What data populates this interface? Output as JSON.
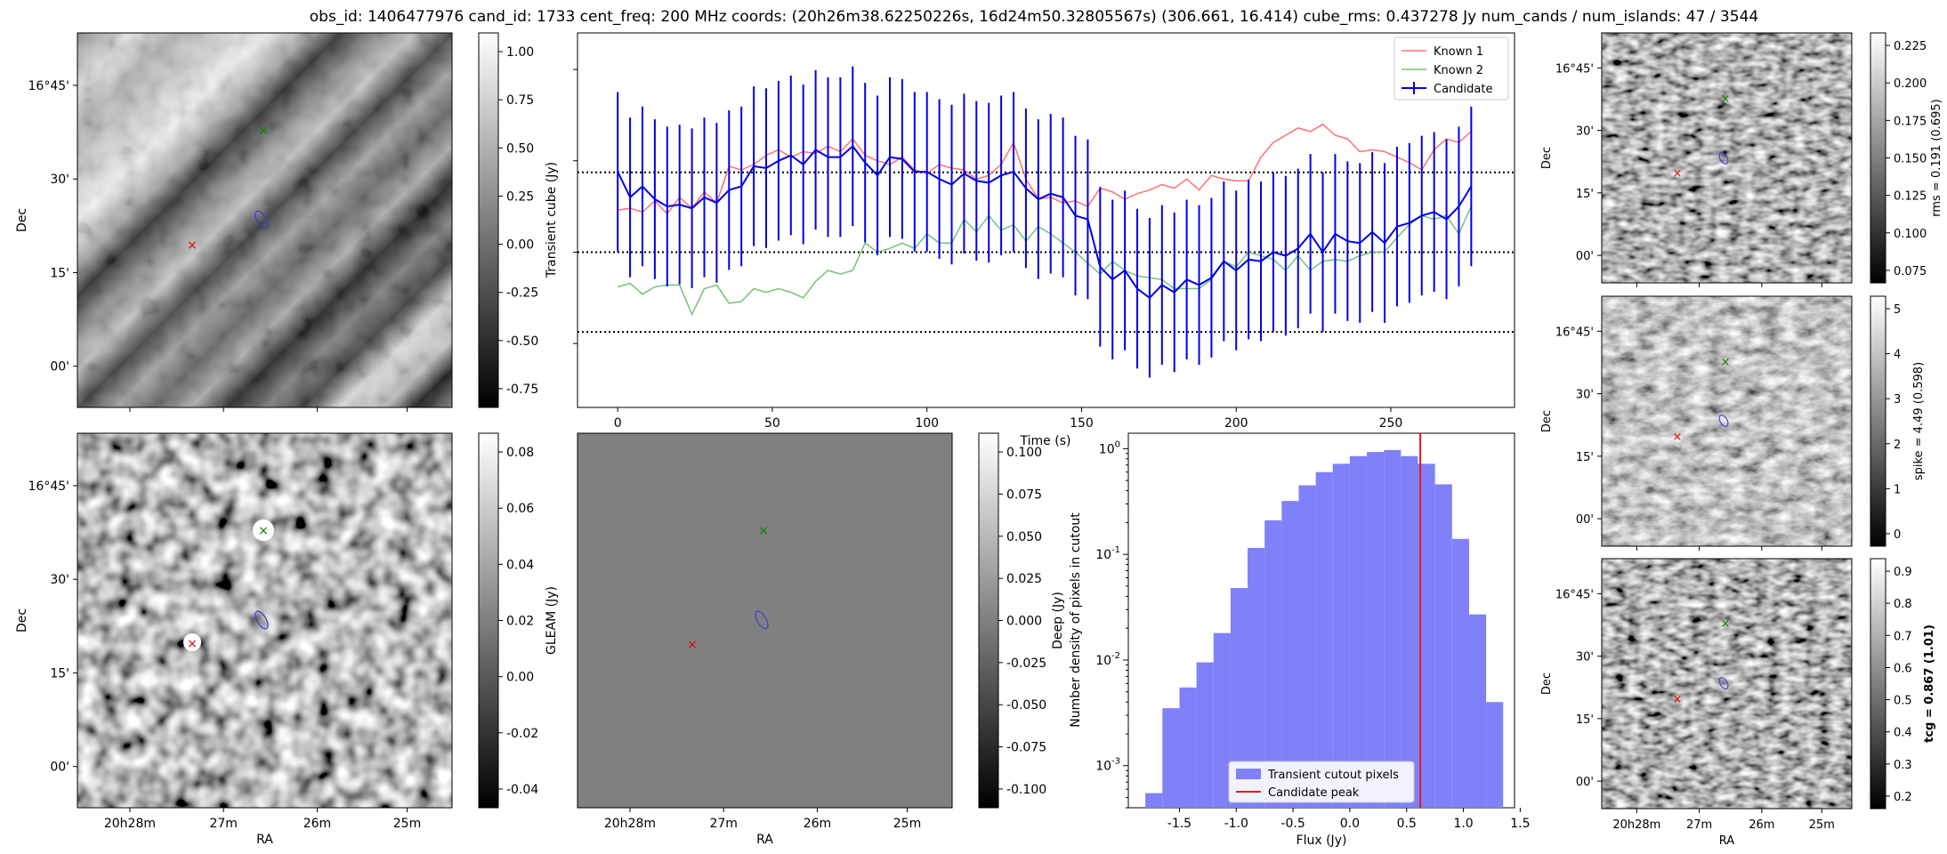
{
  "title": "obs_id: 1406477976 cand_id: 1733 cent_freq: 200 MHz coords: (20h26m38.62250226s, 16d24m50.32805567s) (306.661, 16.414) cube_rms: 0.437278 Jy num_cands / num_islands: 47 / 3544",
  "colors": {
    "known1": "#ff7070",
    "known2": "#78c078",
    "candidate": "#0000e6",
    "peak_line": "#e61a1a",
    "hist_fill": "#8080f8"
  },
  "cutout_axes": {
    "ra_label": "RA",
    "dec_label": "Dec",
    "ra_ticks": [
      "20h28m",
      "27m",
      "26m",
      "25m"
    ],
    "dec_ticks": [
      "16°45'",
      "30'",
      "15'",
      "00'"
    ]
  },
  "panels": {
    "transient_cutout": {
      "colorbar_label": "",
      "colorbar_ticks": [
        "1.00",
        "0.75",
        "0.50",
        "0.25",
        "0.00",
        "-0.25",
        "-0.50",
        "-0.75"
      ]
    },
    "deep_cutout": {
      "colorbar_label": "Deep (Jy)",
      "colorbar_ticks": [
        "0.08",
        "0.06",
        "0.04",
        "0.02",
        "0.00",
        "-0.02",
        "-0.04"
      ]
    },
    "gleam_cutout": {
      "colorbar_label": "GLEAM (Jy)",
      "colorbar_ticks": [
        "0.100",
        "0.075",
        "0.050",
        "0.025",
        "0.000",
        "-0.025",
        "-0.050",
        "-0.075",
        "-0.100"
      ]
    },
    "rms_cutout": {
      "colorbar_label": "rms = 0.191 (0.695)",
      "colorbar_ticks": [
        "0.225",
        "0.200",
        "0.175",
        "0.150",
        "0.125",
        "0.100",
        "0.075"
      ]
    },
    "spike_cutout": {
      "colorbar_label": "spike = 4.49 (0.598)",
      "colorbar_ticks": [
        "5",
        "4",
        "3",
        "2",
        "1",
        "0"
      ]
    },
    "tcg_cutout": {
      "colorbar_label": "tcg = 0.867 (1.01)",
      "colorbar_ticks": [
        "0.9",
        "0.8",
        "0.7",
        "0.6",
        "0.5",
        "0.4",
        "0.3",
        "0.2"
      ]
    }
  },
  "chart_data": [
    {
      "type": "line",
      "title": "",
      "xlabel": "Time (s)",
      "ylabel": "Transient cube (Jy)",
      "xlim": [
        -13,
        290
      ],
      "ylim": [
        -0.85,
        1.2
      ],
      "x_ticks": [
        0,
        50,
        100,
        150,
        200,
        250
      ],
      "reference_lines_y": [
        0.437,
        0.0,
        -0.437
      ],
      "legend_position": "upper right",
      "x": [
        0,
        4,
        8,
        12,
        16,
        20,
        24,
        28,
        32,
        36,
        40,
        44,
        48,
        52,
        56,
        60,
        64,
        68,
        72,
        76,
        80,
        84,
        88,
        92,
        96,
        100,
        104,
        108,
        112,
        116,
        120,
        124,
        128,
        132,
        136,
        140,
        144,
        148,
        152,
        156,
        160,
        164,
        168,
        172,
        176,
        180,
        184,
        188,
        192,
        196,
        200,
        204,
        208,
        212,
        216,
        220,
        224,
        228,
        232,
        236,
        240,
        244,
        248,
        252,
        256,
        260,
        264,
        268,
        272,
        276
      ],
      "series": [
        {
          "name": "Known 1",
          "values": [
            0.23,
            0.24,
            0.22,
            0.28,
            0.21,
            0.3,
            0.24,
            0.33,
            0.27,
            0.47,
            0.45,
            0.48,
            0.53,
            0.56,
            0.52,
            0.55,
            0.54,
            0.58,
            0.55,
            0.62,
            0.53,
            0.5,
            0.48,
            0.52,
            0.45,
            0.43,
            0.48,
            0.46,
            0.45,
            0.4,
            0.42,
            0.48,
            0.6,
            0.4,
            0.29,
            0.3,
            0.27,
            0.28,
            0.25,
            0.35,
            0.33,
            0.29,
            0.32,
            0.34,
            0.37,
            0.35,
            0.4,
            0.34,
            0.42,
            0.4,
            0.39,
            0.39,
            0.52,
            0.6,
            0.64,
            0.68,
            0.66,
            0.7,
            0.64,
            0.62,
            0.55,
            0.56,
            0.55,
            0.52,
            0.49,
            0.45,
            0.56,
            0.62,
            0.6,
            0.66
          ]
        },
        {
          "name": "Known 2",
          "values": [
            -0.19,
            -0.17,
            -0.23,
            -0.19,
            -0.18,
            -0.18,
            -0.34,
            -0.2,
            -0.18,
            -0.28,
            -0.27,
            -0.2,
            -0.22,
            -0.2,
            -0.22,
            -0.25,
            -0.16,
            -0.1,
            -0.12,
            -0.1,
            0.05,
            0.0,
            0.02,
            0.05,
            0.02,
            0.1,
            0.05,
            0.05,
            0.18,
            0.11,
            0.2,
            0.12,
            0.15,
            0.06,
            0.14,
            0.1,
            0.05,
            0.0,
            -0.06,
            -0.12,
            -0.05,
            -0.1,
            -0.13,
            -0.14,
            -0.15,
            -0.2,
            -0.2,
            -0.2,
            -0.15,
            -0.05,
            -0.08,
            0.0,
            -0.02,
            -0.04,
            -0.1,
            -0.02,
            -0.1,
            -0.05,
            -0.04,
            -0.05,
            -0.02,
            0.0,
            0.0,
            0.08,
            0.15,
            0.2,
            0.18,
            0.2,
            0.1,
            0.25
          ]
        },
        {
          "name": "Candidate",
          "values": [
            0.44,
            0.3,
            0.36,
            0.29,
            0.25,
            0.26,
            0.24,
            0.3,
            0.27,
            0.34,
            0.36,
            0.47,
            0.46,
            0.5,
            0.53,
            0.48,
            0.56,
            0.52,
            0.52,
            0.58,
            0.49,
            0.42,
            0.52,
            0.51,
            0.44,
            0.44,
            0.4,
            0.37,
            0.43,
            0.39,
            0.38,
            0.42,
            0.44,
            0.35,
            0.29,
            0.32,
            0.3,
            0.2,
            0.18,
            -0.08,
            -0.15,
            -0.1,
            -0.2,
            -0.25,
            -0.18,
            -0.22,
            -0.15,
            -0.18,
            -0.14,
            -0.05,
            -0.1,
            -0.04,
            -0.05,
            0.0,
            -0.02,
            0.02,
            0.1,
            0.0,
            0.1,
            0.06,
            0.05,
            0.11,
            0.05,
            0.14,
            0.16,
            0.2,
            0.22,
            0.18,
            0.25,
            0.36
          ],
          "errors": 0.437
        }
      ]
    },
    {
      "type": "bar",
      "title": "",
      "xlabel": "Flux (Jy)",
      "ylabel": "Number density of pixels in cutout",
      "yscale": "log",
      "xlim": [
        -1.95,
        1.45
      ],
      "ylim": [
        0.0004,
        1.4
      ],
      "x_ticks": [
        "-1.5",
        "-1.0",
        "-0.5",
        "0.0",
        "0.5",
        "1.0",
        "1.5"
      ],
      "y_ticks": [
        "10^0",
        "10^-1",
        "10^-2",
        "10^-3"
      ],
      "bin_edges": [
        -1.8,
        -1.65,
        -1.5,
        -1.35,
        -1.2,
        -1.05,
        -0.9,
        -0.75,
        -0.6,
        -0.45,
        -0.3,
        -0.15,
        0.0,
        0.15,
        0.3,
        0.45,
        0.6,
        0.75,
        0.9,
        1.05,
        1.2,
        1.35
      ],
      "values": [
        0.00055,
        0.0035,
        0.0055,
        0.0095,
        0.018,
        0.048,
        0.115,
        0.21,
        0.32,
        0.45,
        0.6,
        0.72,
        0.85,
        0.93,
        0.97,
        0.85,
        0.72,
        0.46,
        0.14,
        0.027,
        0.004
      ],
      "candidate_peak": 0.62,
      "legend_position": "lower center",
      "legend": [
        "Transient cutout pixels",
        "Candidate peak"
      ]
    }
  ]
}
